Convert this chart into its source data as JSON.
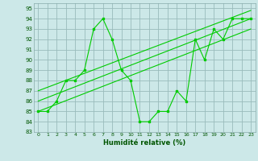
{
  "main_line_x": [
    0,
    1,
    2,
    3,
    4,
    5,
    6,
    7,
    8,
    9,
    10,
    11,
    12,
    13,
    14,
    15,
    16,
    17,
    18,
    19,
    20,
    21,
    22,
    23
  ],
  "main_line_y": [
    85,
    85,
    86,
    88,
    88,
    89,
    93,
    94,
    92,
    89,
    88,
    84,
    84,
    85,
    85,
    87,
    86,
    92,
    90,
    93,
    92,
    94,
    94,
    94
  ],
  "trend1_x": [
    0,
    23
  ],
  "trend1_y": [
    85.0,
    93.0
  ],
  "trend2_x": [
    0,
    23
  ],
  "trend2_y": [
    86.0,
    94.0
  ],
  "trend3_x": [
    0,
    23
  ],
  "trend3_y": [
    87.0,
    94.8
  ],
  "line_color": "#00cc00",
  "bg_color": "#cce8e8",
  "grid_color": "#99bbbb",
  "xlabel": "Humidité relative (%)",
  "xlim": [
    -0.5,
    23.5
  ],
  "ylim": [
    83,
    95.5
  ],
  "yticks": [
    83,
    84,
    85,
    86,
    87,
    88,
    89,
    90,
    91,
    92,
    93,
    94,
    95
  ],
  "xticks": [
    0,
    1,
    2,
    3,
    4,
    5,
    6,
    7,
    8,
    9,
    10,
    11,
    12,
    13,
    14,
    15,
    16,
    17,
    18,
    19,
    20,
    21,
    22,
    23
  ]
}
